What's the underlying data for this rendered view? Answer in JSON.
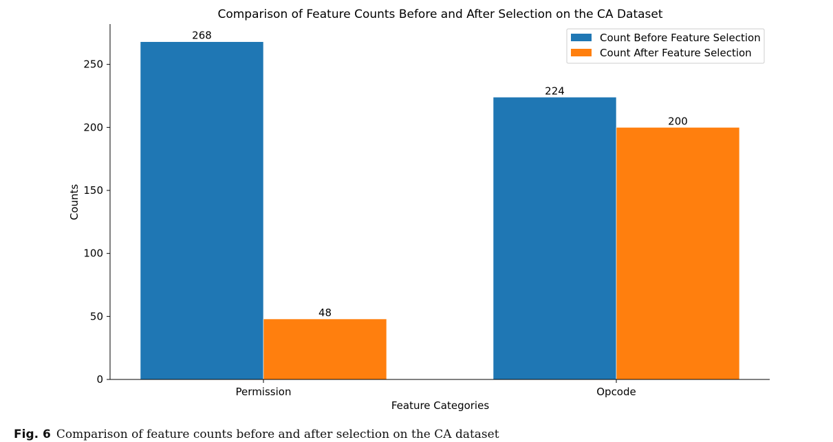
{
  "chart_data": {
    "type": "bar",
    "title": "Comparison of Feature Counts Before and After Selection on the CA Dataset",
    "xlabel": "Feature Categories",
    "ylabel": "Counts",
    "categories": [
      "Permission",
      "Opcode"
    ],
    "series": [
      {
        "name": "Count Before Feature Selection",
        "values": [
          268,
          224
        ],
        "color": "#1f77b4"
      },
      {
        "name": "Count After Feature Selection",
        "values": [
          48,
          200
        ],
        "color": "#ff7f0e"
      }
    ],
    "ylim": [
      0,
      282
    ],
    "yticks": [
      0,
      50,
      100,
      150,
      200,
      250
    ],
    "legend": "top-right",
    "grid": false
  },
  "caption": {
    "label": "Fig. 6",
    "text": "Comparison of feature counts before and after selection on the CA dataset"
  }
}
